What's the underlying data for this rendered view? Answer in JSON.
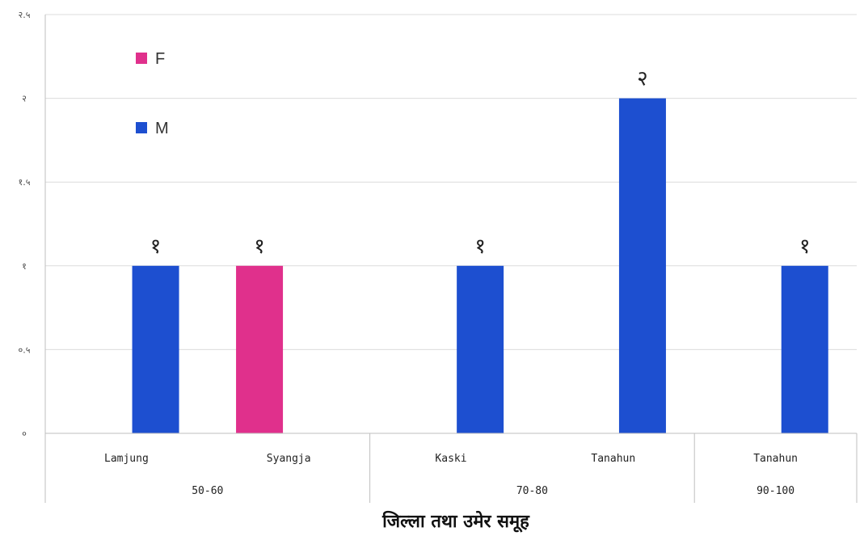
{
  "chart_data": {
    "type": "bar",
    "categories": [
      "Lamjung",
      "Syangja",
      "Kaski",
      "Tanahun",
      "Tanahun"
    ],
    "groups": [
      {
        "label": "50-60",
        "categories": [
          "Lamjung",
          "Syangja"
        ]
      },
      {
        "label": "70-80",
        "categories": [
          "Kaski",
          "Tanahun"
        ]
      },
      {
        "label": "90-100",
        "categories": [
          "Tanahun"
        ]
      }
    ],
    "series": [
      {
        "name": "F",
        "color": "#e0308c",
        "values": [
          null,
          1,
          null,
          null,
          null
        ]
      },
      {
        "name": "M",
        "color": "#1d4fd0",
        "values": [
          1,
          null,
          1,
          2,
          1
        ]
      }
    ],
    "data_labels": [
      "१",
      "१",
      "१",
      "२",
      "१"
    ],
    "yticks": [
      {
        "value": 0,
        "label": "०"
      },
      {
        "value": 0.5,
        "label": "०.५"
      },
      {
        "value": 1,
        "label": "१"
      },
      {
        "value": 1.5,
        "label": "१.५"
      },
      {
        "value": 2,
        "label": "२"
      },
      {
        "value": 2.5,
        "label": "२.५"
      }
    ],
    "ylim": [
      0,
      2.5
    ],
    "xlabel": "जिल्ला तथा उमेर समूह",
    "ylabel": "",
    "title": "",
    "legend_position": "top-left",
    "grid": true
  }
}
